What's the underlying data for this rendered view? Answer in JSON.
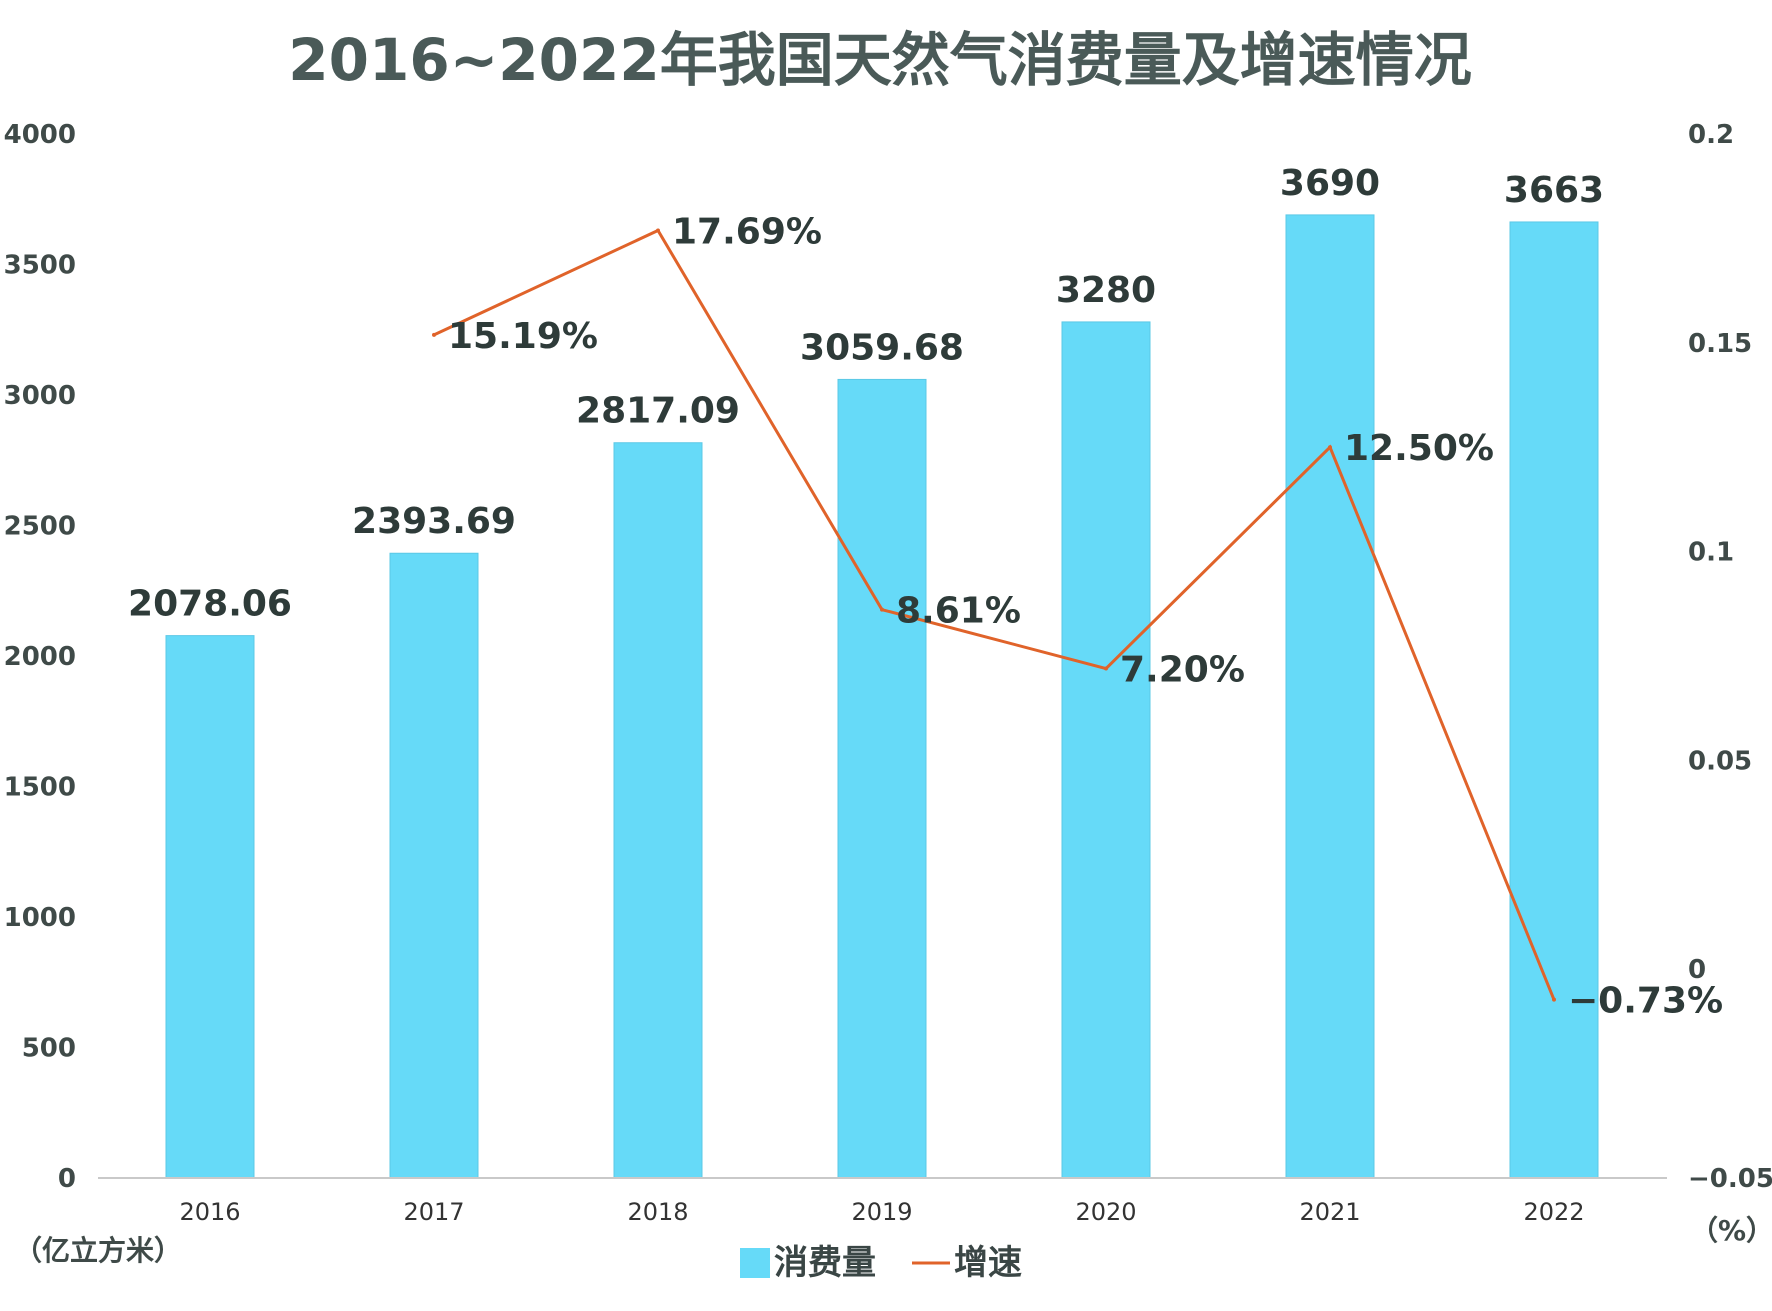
{
  "chart_data": {
    "type": "bar",
    "title": "2016~2022年我国天然气消费量及增速情况",
    "categories": [
      "2016",
      "2017",
      "2018",
      "2019",
      "2020",
      "2021",
      "2022"
    ],
    "series": [
      {
        "name": "消费量",
        "type": "bar",
        "axis": "left",
        "color": "#66daf8",
        "values": [
          2078.06,
          2393.69,
          2817.09,
          3059.68,
          3280,
          3690,
          3663
        ],
        "labels": [
          "2078.06",
          "2393.69",
          "2817.09",
          "3059.68",
          "3280",
          "3690",
          "3663"
        ]
      },
      {
        "name": "增速",
        "type": "line",
        "axis": "right",
        "color": "#e0632a",
        "values": [
          null,
          0.1519,
          0.1769,
          0.0861,
          0.072,
          0.125,
          -0.0073
        ],
        "labels": [
          "",
          "15.19%",
          "17.69%",
          "8.61%",
          "7.20%",
          "12.50%",
          "−0.73%"
        ]
      }
    ],
    "y_left": {
      "unit": "（亿立方米）",
      "range": [
        0,
        4000
      ],
      "ticks": [
        "0",
        "500",
        "1000",
        "1500",
        "2000",
        "2500",
        "3000",
        "3500",
        "4000"
      ]
    },
    "y_right": {
      "unit": "（%）",
      "range": [
        -0.05,
        0.2
      ],
      "ticks": [
        "−0.05",
        "0",
        "0.05",
        "0.1",
        "0.15",
        "0.2"
      ]
    },
    "grid": false,
    "legend": "bottom-center"
  }
}
